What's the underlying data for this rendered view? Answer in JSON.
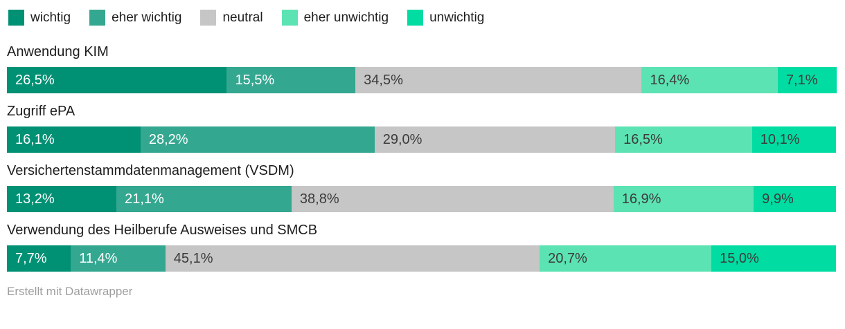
{
  "chart_data": {
    "type": "bar",
    "stacked": true,
    "orientation": "horizontal",
    "unit": "%",
    "xlim": [
      0,
      100
    ],
    "legend_position": "top",
    "grid": false,
    "categories": [
      "Anwendung KIM",
      "Zugriff ePA",
      "Versichertenstammdatenmanagement (VSDM)",
      "Verwendung des Heilberufe Ausweises und SMCB"
    ],
    "series": [
      {
        "name": "wichtig",
        "color": "#009174",
        "text_color": "#ffffff",
        "values": [
          26.5,
          16.1,
          13.2,
          7.7
        ],
        "labels": [
          "26,5%",
          "16,1%",
          "13,2%",
          "7,7%"
        ]
      },
      {
        "name": "eher wichtig",
        "color": "#34A790",
        "text_color": "#ffffff",
        "values": [
          15.5,
          28.2,
          21.1,
          11.4
        ],
        "labels": [
          "15,5%",
          "28,2%",
          "21,1%",
          "11,4%"
        ]
      },
      {
        "name": "neutral",
        "color": "#C6C6C6",
        "text_color": "#3b3b3b",
        "values": [
          34.5,
          29.0,
          38.8,
          45.1
        ],
        "labels": [
          "34,5%",
          "29,0%",
          "38,8%",
          "45,1%"
        ]
      },
      {
        "name": "eher unwichtig",
        "color": "#5CE3B3",
        "text_color": "#3b3b3b",
        "values": [
          16.4,
          16.5,
          16.9,
          20.7
        ],
        "labels": [
          "16,4%",
          "16,5%",
          "16,9%",
          "20,7%"
        ]
      },
      {
        "name": "unwichtig",
        "color": "#00DCA2",
        "text_color": "#3b3b3b",
        "values": [
          7.1,
          10.1,
          9.9,
          15.0
        ],
        "labels": [
          "7,1%",
          "10,1%",
          "9,9%",
          "15,0%"
        ]
      }
    ]
  },
  "footer": {
    "text": "Erstellt mit Datawrapper"
  }
}
